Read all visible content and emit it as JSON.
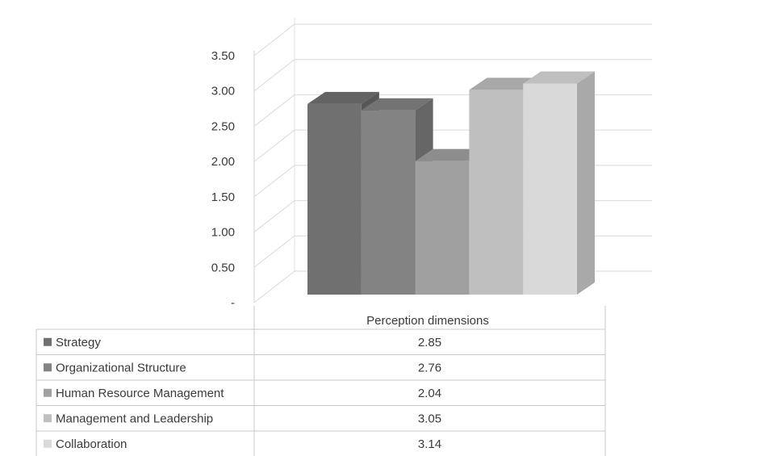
{
  "chart_data": {
    "type": "bar",
    "title": "",
    "xlabel": "",
    "ylabel": "",
    "categories": [
      "Perception dimensions"
    ],
    "ylim": [
      0,
      3.5
    ],
    "y_tick_labels": [
      "-",
      "0.50",
      "1.00",
      "1.50",
      "2.00",
      "2.50",
      "3.00",
      "3.50"
    ],
    "grid": true,
    "legend": "data-table-below",
    "series": [
      {
        "name": "Strategy",
        "values": [
          2.85
        ],
        "value_label": "2.85",
        "color": "#707070"
      },
      {
        "name": "Organizational Structure",
        "values": [
          2.76
        ],
        "value_label": "2.76",
        "color": "#838383"
      },
      {
        "name": "Human Resource Management",
        "values": [
          2.04
        ],
        "value_label": "2.04",
        "color": "#a0a0a0"
      },
      {
        "name": "Management and Leadership",
        "values": [
          3.05
        ],
        "value_label": "3.05",
        "color": "#bfbfbf"
      },
      {
        "name": "Collaboration",
        "values": [
          3.14
        ],
        "value_label": "3.14",
        "color": "#d9d9d9"
      }
    ]
  }
}
